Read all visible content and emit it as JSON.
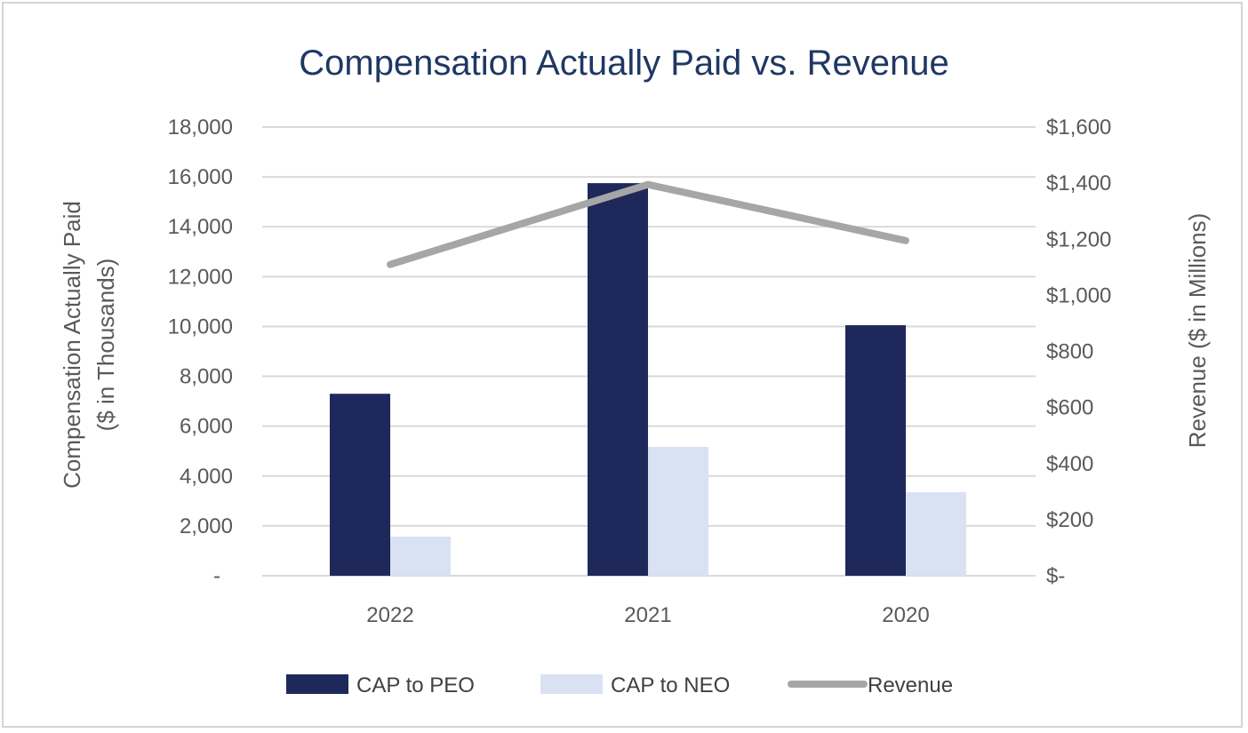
{
  "chart_data": {
    "type": "bar",
    "title": "Compensation Actually Paid vs. Revenue",
    "categories": [
      "2022",
      "2021",
      "2020"
    ],
    "series": [
      {
        "name": "CAP to PEO",
        "type": "bar",
        "axis": "left",
        "color": "#1f285a",
        "values": [
          7300,
          15750,
          10050
        ]
      },
      {
        "name": "CAP to NEO",
        "type": "bar",
        "axis": "left",
        "color": "#d9e2f3",
        "values": [
          1570,
          5170,
          3350
        ]
      },
      {
        "name": "Revenue",
        "type": "line",
        "axis": "right",
        "color": "#a6a6a6",
        "values": [
          1110,
          1395,
          1195
        ]
      }
    ],
    "ylabel": [
      "Compensation Actually Paid",
      "($ in Thousands)"
    ],
    "y2label": "Revenue ($ in Millions)",
    "ylim": [
      0,
      18000
    ],
    "y2lim": [
      0,
      1600
    ],
    "yticks": [
      "-",
      "2,000",
      "4,000",
      "6,000",
      "8,000",
      "10,000",
      "12,000",
      "14,000",
      "16,000",
      "18,000"
    ],
    "y2ticks": [
      "$-",
      "$200",
      "$400",
      "$600",
      "$800",
      "$1,000",
      "$1,200",
      "$1,400",
      "$1,600"
    ],
    "grid": true,
    "legend": "bottom"
  }
}
